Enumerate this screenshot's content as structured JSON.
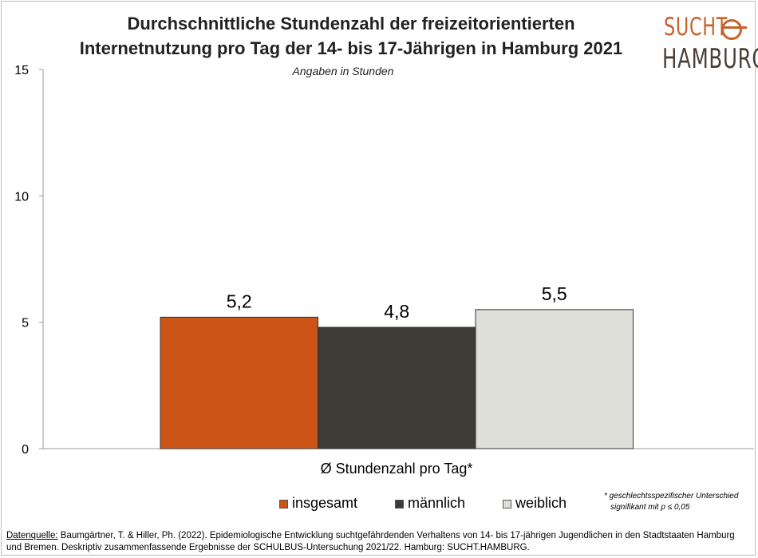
{
  "title_line1": "Durchschnittliche Stundenzahl der freizeitorientierten",
  "title_line2": "Internetnutzung pro Tag der 14- bis 17-Jährigen in Hamburg 2021",
  "subtitle": "Angaben in Stunden",
  "logo": {
    "top": "SUCHT",
    "bottom": "HAMBURG",
    "color_top": "#c8622a",
    "color_bottom": "#4a3e38"
  },
  "chart_data": {
    "type": "bar",
    "categories": [
      "Ø Stundenzahl pro Tag*"
    ],
    "series": [
      {
        "name": "insgesamt",
        "values": [
          5.2
        ],
        "label": "5,2",
        "color": "#cc5416"
      },
      {
        "name": "männlich",
        "values": [
          4.8
        ],
        "label": "4,8",
        "color": "#3e3a35"
      },
      {
        "name": "weiblich",
        "values": [
          5.5
        ],
        "label": "5,5",
        "color": "#dedfd8"
      }
    ],
    "ylim": [
      0,
      15
    ],
    "yticks": [
      0,
      5,
      10,
      15
    ],
    "xlabel": "Ø Stundenzahl pro Tag*",
    "legend_position": "bottom",
    "grid": false
  },
  "footnote_line1": "* geschlechtsspezifischer Unterschied",
  "footnote_line2": "signifikant mit p ≤ 0,05",
  "source_lead": "Datenquelle:",
  "source_text": " Baumgärtner, T. & Hiller, Ph. (2022). Epidemiologische Entwicklung suchtgefährdenden Verhaltens von 14- bis 17-jährigen Jugendlichen in den Stadtstaaten Hamburg und Bremen. Deskriptiv zusammenfassende Ergebnisse der SCHULBUS-Untersuchung 2021/22. Hamburg: SUCHT.HAMBURG."
}
